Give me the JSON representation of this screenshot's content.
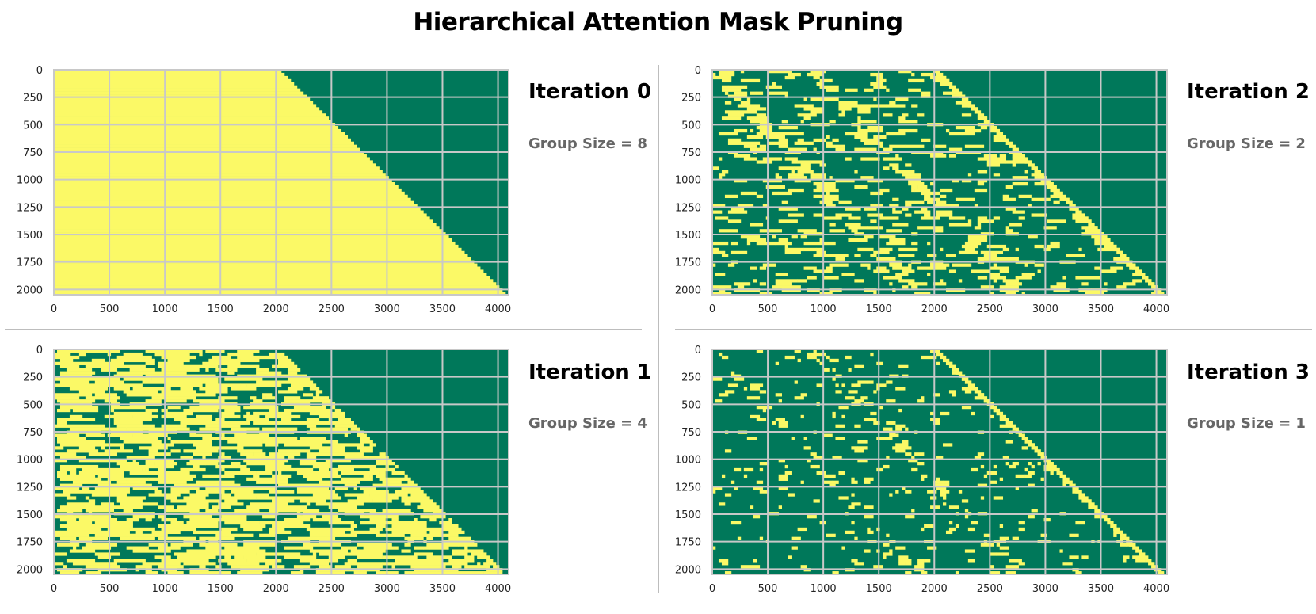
{
  "figure": {
    "title": "Hierarchical Attention Mask Pruning",
    "colors": {
      "kept": "#fbf966",
      "pruned": "#00785a",
      "grid": "#c8c8c8",
      "divider": "#bdbdbd"
    }
  },
  "chart_data": [
    {
      "type": "heatmap",
      "title": "Iteration 0",
      "subtitle": "Group Size = 8",
      "group_size": 8,
      "x_ticks": [
        0,
        500,
        1000,
        1500,
        2000,
        2500,
        3000,
        3500,
        4000
      ],
      "y_ticks": [
        0,
        250,
        500,
        750,
        1000,
        1250,
        1500,
        1750,
        2000
      ],
      "xlim": [
        0,
        4096
      ],
      "ylim": [
        2048,
        0
      ],
      "grid": true,
      "pattern": "causal-offset",
      "mask_rule": "kept where key_index <= query_index + 2048"
    },
    {
      "type": "heatmap",
      "title": "Iteration 1",
      "subtitle": "Group Size = 4",
      "group_size": 4,
      "x_ticks": [
        0,
        500,
        1000,
        1500,
        2000,
        2500,
        3000,
        3500,
        4000
      ],
      "y_ticks": [
        0,
        250,
        500,
        750,
        1000,
        1250,
        1500,
        1750,
        2000
      ],
      "xlim": [
        0,
        4096
      ],
      "ylim": [
        2048,
        0
      ],
      "grid": true,
      "pattern": "sparse",
      "kept_density": 0.5
    },
    {
      "type": "heatmap",
      "title": "Iteration 2",
      "subtitle": "Group Size = 2",
      "group_size": 2,
      "x_ticks": [
        0,
        500,
        1000,
        1500,
        2000,
        2500,
        3000,
        3500,
        4000
      ],
      "y_ticks": [
        0,
        250,
        500,
        750,
        1000,
        1250,
        1500,
        1750,
        2000
      ],
      "xlim": [
        0,
        4096
      ],
      "ylim": [
        2048,
        0
      ],
      "grid": true,
      "pattern": "sparse",
      "kept_density": 0.2
    },
    {
      "type": "heatmap",
      "title": "Iteration 3",
      "subtitle": "Group Size = 1",
      "group_size": 1,
      "x_ticks": [
        0,
        500,
        1000,
        1500,
        2000,
        2500,
        3000,
        3500,
        4000
      ],
      "y_ticks": [
        0,
        250,
        500,
        750,
        1000,
        1250,
        1500,
        1750,
        2000
      ],
      "xlim": [
        0,
        4096
      ],
      "ylim": [
        2048,
        0
      ],
      "grid": true,
      "pattern": "sparse",
      "kept_density": 0.12
    }
  ]
}
